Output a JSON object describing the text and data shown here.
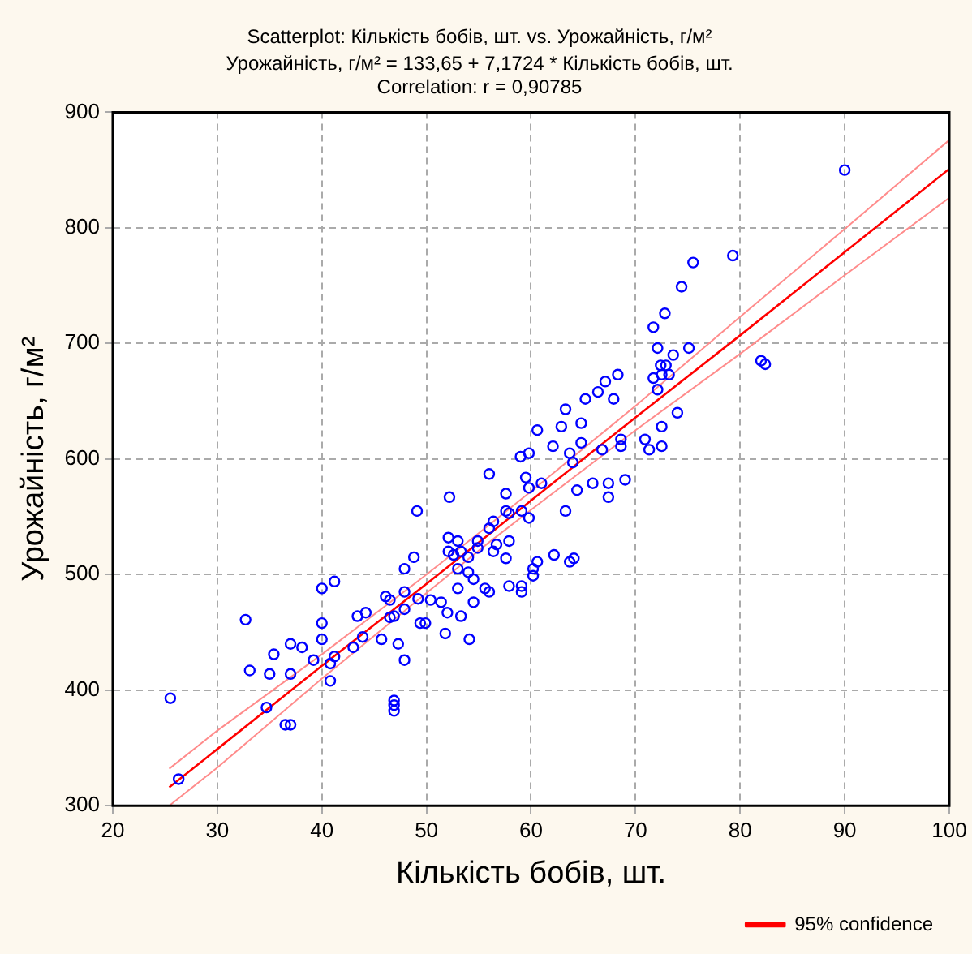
{
  "chart_data": {
    "type": "scatter",
    "title": "Scatterplot: Кількість бобів, шт. vs. Урожайність, г/м²",
    "subtitle": "Урожайність, г/м² = 133,65 + 7,1724 * Кількість бобів, шт.",
    "annotations": [
      "Correlation: r = 0,90785"
    ],
    "xlabel": "Кількість бобів, шт.",
    "ylabel": "Урожайність, г/м²",
    "xlim": [
      20,
      100
    ],
    "xticks": [
      20,
      30,
      40,
      50,
      60,
      70,
      80,
      90,
      100
    ],
    "ylim": [
      300,
      900
    ],
    "yticks": [
      300,
      400,
      500,
      600,
      700,
      800,
      900
    ],
    "grid": true,
    "legend": "bottom right",
    "marker": "circle",
    "series": [
      {
        "color": "#0000ff",
        "x": [
          25.5,
          26.3,
          32.7,
          33.1,
          35.4,
          35.0,
          34.7,
          36.5,
          37.0,
          37.0,
          37.0,
          38.1,
          39.2,
          40.0,
          41.2,
          40.0,
          40.0,
          40.8,
          41.2,
          40.8,
          43.0,
          43.9,
          43.4,
          44.2,
          45.7,
          46.1,
          46.5,
          46.5,
          46.9,
          47.3,
          47.9,
          46.9,
          46.9,
          46.9,
          47.9,
          47.9,
          47.9,
          48.8,
          49.2,
          49.4,
          49.9,
          50.4,
          51.4,
          52.0,
          51.8,
          60.6,
          62.9,
          64.8,
          62.1,
          63.7,
          64.0,
          64.8,
          66.8,
          68.6,
          68.6,
          59.0,
          59.8,
          56.0,
          59.5,
          59.8,
          61.0,
          64.4,
          65.9,
          67.4,
          67.4,
          69.0,
          63.3,
          57.6,
          57.6,
          57.9,
          59.1,
          59.8,
          56.4,
          56.0,
          52.2,
          49.1,
          52.1,
          53.0,
          52.1,
          53.3,
          52.6,
          54.9,
          54.9,
          56.7,
          56.4,
          57.9,
          57.6,
          54.0,
          53.0,
          54.0,
          54.5,
          62.2,
          63.7,
          64.1,
          60.6,
          60.2,
          60.2,
          57.9,
          59.1,
          59.1,
          55.6,
          56.0,
          53.0,
          54.5,
          53.3,
          54.1,
          79.3,
          75.5,
          74.4,
          72.8,
          71.7,
          72.1,
          75.1,
          73.6,
          72.4,
          72.9,
          71.7,
          72.5,
          73.2,
          72.1,
          68.3,
          67.1,
          66.4,
          65.2,
          67.9,
          63.3,
          74.0,
          72.5,
          70.9,
          71.3,
          72.5,
          82.0,
          82.4,
          90.0
        ],
        "values": [
          393,
          323,
          461,
          417,
          431,
          414,
          385,
          370,
          370,
          440,
          414,
          437,
          426,
          488,
          494,
          458,
          444,
          423,
          429,
          408,
          437,
          446,
          464,
          467,
          444,
          481,
          478,
          463,
          464,
          440,
          426,
          391,
          387,
          382,
          505,
          485,
          470,
          515,
          479,
          458,
          458,
          478,
          476,
          467,
          449,
          625,
          628,
          631,
          611,
          605,
          597,
          614,
          608,
          617,
          611,
          602,
          605,
          587,
          584,
          575,
          579,
          573,
          579,
          579,
          567,
          582,
          555,
          570,
          555,
          553,
          555,
          549,
          546,
          540,
          567,
          555,
          532,
          529,
          520,
          520,
          517,
          529,
          523,
          526,
          520,
          529,
          514,
          515,
          505,
          502,
          496,
          517,
          511,
          514,
          511,
          505,
          499,
          490,
          490,
          485,
          488,
          485,
          488,
          476,
          464,
          444,
          776,
          770,
          749,
          726,
          714,
          696,
          696,
          690,
          681,
          681,
          670,
          673,
          673,
          660,
          673,
          667,
          658,
          652,
          652,
          643,
          640,
          628,
          617,
          608,
          611,
          685,
          682,
          850
        ]
      },
      {
        "type": "line",
        "name": "95% confidence",
        "color": "#ff0000",
        "marker": "none",
        "x": [
          25.4,
          30,
          40,
          50,
          56,
          60,
          70,
          80,
          90,
          100
        ],
        "values": [
          316,
          349,
          421,
          492,
          535,
          564,
          636,
          707,
          779,
          851
        ]
      },
      {
        "type": "line",
        "color": "#ff8c8c",
        "marker": "none",
        "x": [
          25.4,
          30,
          40,
          50,
          56,
          60,
          70,
          80,
          90,
          100
        ],
        "values": [
          300,
          333,
          410,
          484,
          528,
          556,
          625,
          691,
          759,
          826
        ]
      },
      {
        "type": "line",
        "color": "#ff8c8c",
        "marker": "none",
        "x": [
          25.4,
          30,
          40,
          50,
          56,
          60,
          70,
          80,
          90,
          100
        ],
        "values": [
          332,
          365,
          431,
          500,
          543,
          572,
          646,
          723,
          799,
          876
        ]
      }
    ]
  }
}
